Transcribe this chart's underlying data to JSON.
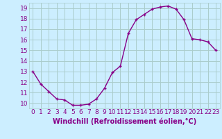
{
  "x": [
    0,
    1,
    2,
    3,
    4,
    5,
    6,
    7,
    8,
    9,
    10,
    11,
    12,
    13,
    14,
    15,
    16,
    17,
    18,
    19,
    20,
    21,
    22,
    23
  ],
  "y": [
    13.0,
    11.8,
    11.1,
    10.4,
    10.3,
    9.8,
    9.8,
    9.9,
    10.4,
    11.4,
    12.9,
    13.5,
    16.6,
    17.9,
    18.4,
    18.9,
    19.1,
    19.2,
    18.9,
    17.9,
    16.1,
    16.0,
    15.8,
    15.0
  ],
  "line_color": "#880088",
  "marker": "+",
  "marker_size": 3.5,
  "marker_lw": 1.0,
  "line_width": 1.0,
  "bg_color": "#cceeff",
  "grid_color": "#aacccc",
  "tick_color": "#880088",
  "label_color": "#880088",
  "xlabel": "Windchill (Refroidissement éolien,°C)",
  "ylim": [
    9.5,
    19.5
  ],
  "yticks": [
    10,
    11,
    12,
    13,
    14,
    15,
    16,
    17,
    18,
    19
  ],
  "xticks": [
    0,
    1,
    2,
    3,
    4,
    5,
    6,
    7,
    8,
    9,
    10,
    11,
    12,
    13,
    14,
    15,
    16,
    17,
    18,
    19,
    20,
    21,
    22,
    23
  ],
  "font_size": 6.5,
  "xlabel_fontsize": 7.0
}
